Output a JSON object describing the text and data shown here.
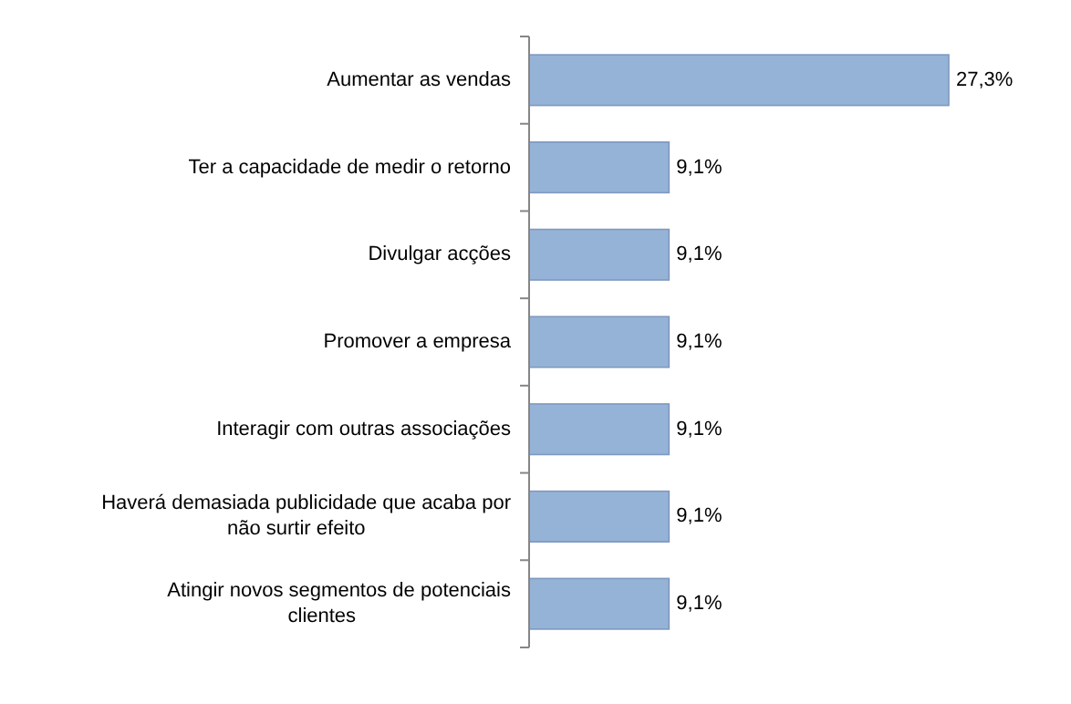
{
  "chart_data": {
    "type": "bar",
    "orientation": "horizontal",
    "categories": [
      "Aumentar as vendas",
      "Ter a capacidade de medir o retorno",
      "Divulgar acções",
      "Promover a empresa",
      "Interagir com outras associações",
      "Haverá demasiada publicidade que acaba por não surtir efeito",
      "Atingir novos segmentos de potenciais clientes"
    ],
    "values": [
      27.3,
      9.1,
      9.1,
      9.1,
      9.1,
      9.1,
      9.1
    ],
    "value_labels": [
      "27,3%",
      "9,1%",
      "9,1%",
      "9,1%",
      "9,1%",
      "9,1%",
      "9,1%"
    ],
    "color": "#95b3d7"
  }
}
